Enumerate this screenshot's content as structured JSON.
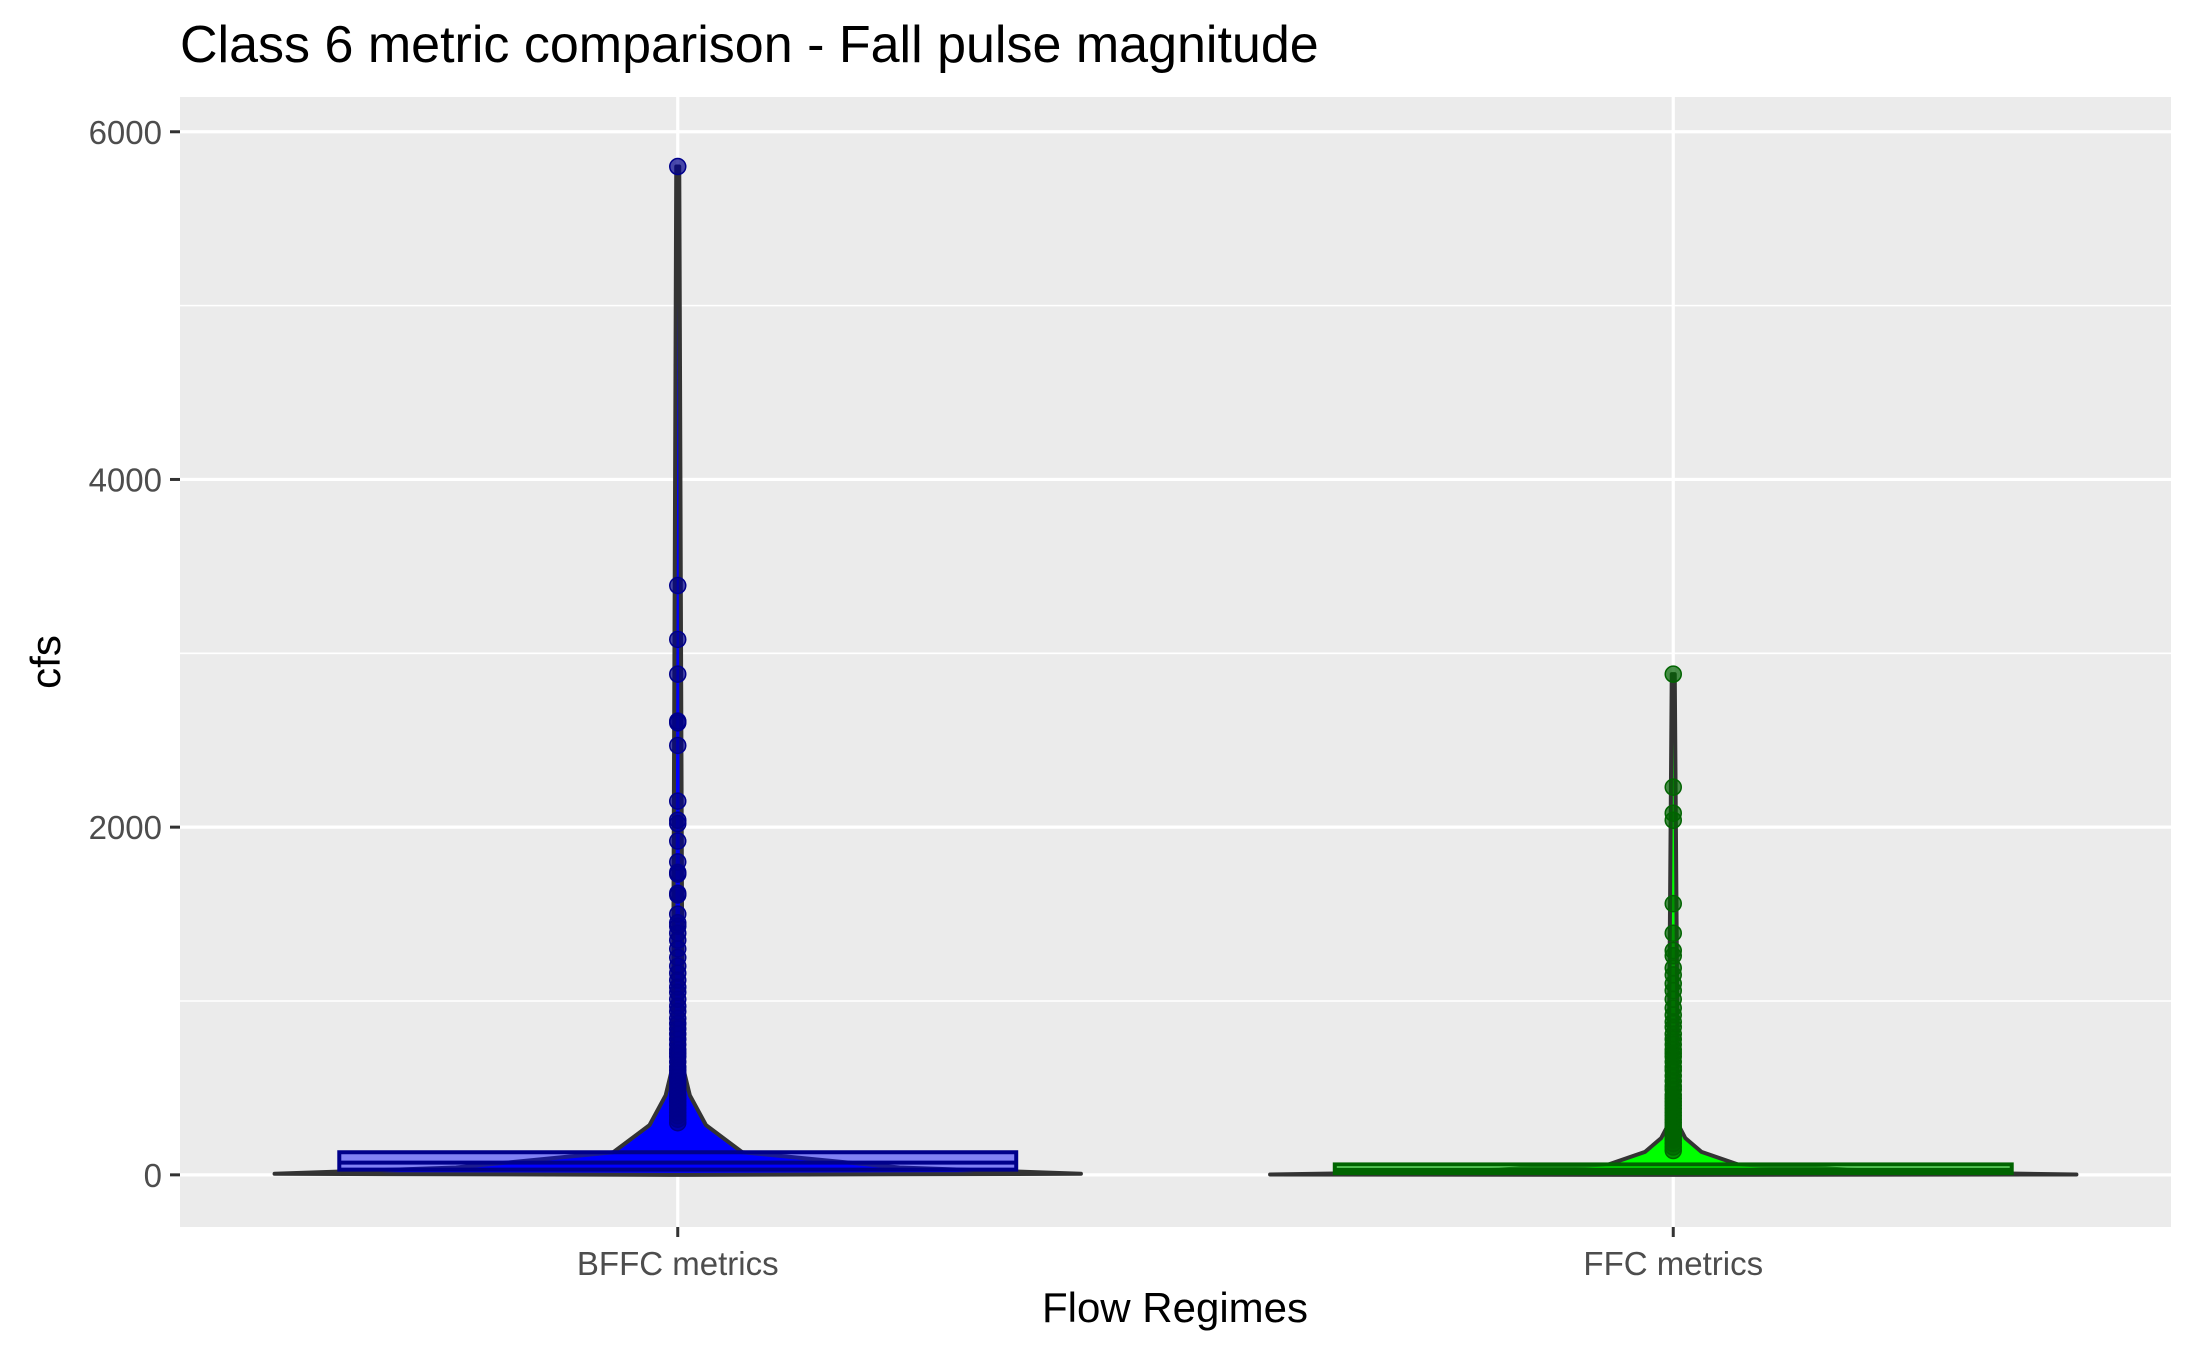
{
  "chart_data": {
    "type": "violin",
    "title": "Class 6 metric comparison - Fall pulse magnitude",
    "xlabel": "Flow Regimes",
    "ylabel": "cfs",
    "ylim": [
      -300,
      6200
    ],
    "yticks": [
      0,
      2000,
      4000,
      6000
    ],
    "grid": true,
    "legend": "none",
    "categories": [
      "BFFC metrics",
      "FFC metrics"
    ],
    "series": [
      {
        "category": "BFFC metrics",
        "fill_color": "#0000ff",
        "point_color": "#00008b",
        "box": {
          "q1": 30,
          "median": 70,
          "q3": 130
        },
        "outliers": [
          5800,
          3390,
          3080,
          2880,
          2610,
          2600,
          2470,
          2150,
          2040,
          2020,
          1920,
          1800,
          1740,
          1730,
          1620,
          1610,
          1500,
          1450,
          1430,
          1390,
          1350,
          1300,
          1250,
          1200,
          1160,
          1120,
          1080,
          1050,
          1010,
          970,
          940,
          900,
          870,
          840,
          810,
          780,
          750,
          720,
          700,
          680,
          650,
          620,
          600,
          580,
          560,
          540,
          520,
          500,
          480,
          460,
          440,
          420,
          400,
          380,
          360,
          340,
          320,
          300
        ]
      },
      {
        "category": "FFC metrics",
        "fill_color": "#00ff00",
        "point_color": "#006400",
        "box": {
          "q1": 10,
          "median": 30,
          "q3": 60
        },
        "outliers": [
          2880,
          2230,
          2080,
          2040,
          1560,
          1390,
          1290,
          1260,
          1190,
          1150,
          1100,
          1060,
          1010,
          960,
          920,
          880,
          850,
          810,
          780,
          750,
          720,
          700,
          680,
          650,
          620,
          600,
          570,
          540,
          510,
          490,
          460,
          440,
          420,
          400,
          380,
          360,
          340,
          320,
          300,
          280,
          260,
          240,
          220,
          200,
          180,
          160,
          140
        ]
      }
    ]
  }
}
